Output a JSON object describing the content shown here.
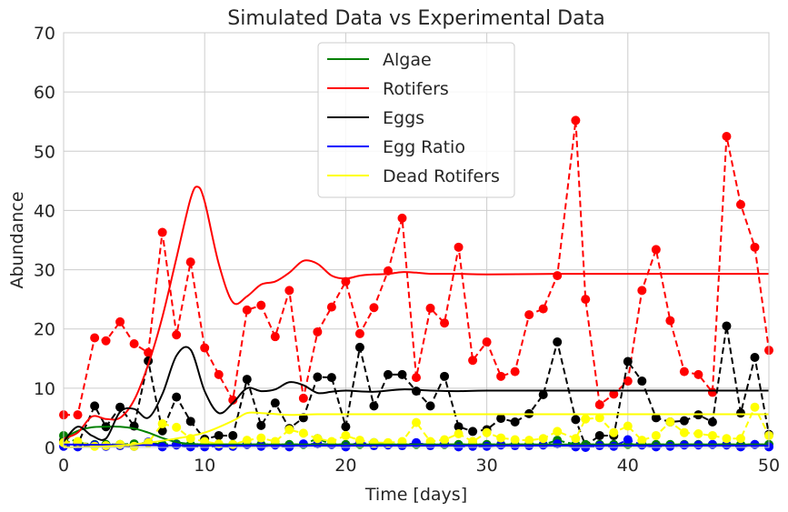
{
  "chart_data": {
    "type": "line",
    "title": "Simulated Data vs Experimental Data",
    "xlabel": "Time [days]",
    "ylabel": "Abundance",
    "xlim": [
      0,
      50
    ],
    "ylim": [
      0,
      70
    ],
    "xticks": [
      "0",
      "10",
      "20",
      "30",
      "40",
      "50"
    ],
    "yticks": [
      "0",
      "10",
      "20",
      "30",
      "40",
      "50",
      "60",
      "70"
    ],
    "grid": true,
    "legend_position": "top-center",
    "legend": [
      {
        "label": "Algae",
        "color": "#008000"
      },
      {
        "label": "Rotifers",
        "color": "#ff0000"
      },
      {
        "label": "Eggs",
        "color": "#000000"
      },
      {
        "label": "Egg Ratio",
        "color": "#0000ff"
      },
      {
        "label": "Dead Rotifers",
        "color": "#ffff00"
      }
    ],
    "simulated": [
      {
        "name": "Algae",
        "color": "#008000",
        "x": [
          0,
          1,
          2,
          3,
          4,
          5,
          6,
          7,
          8,
          9,
          10,
          12,
          14,
          16,
          18,
          20,
          25,
          30,
          35,
          40,
          45,
          50
        ],
        "y": [
          1.5,
          2.8,
          3.4,
          3.5,
          3.5,
          3.2,
          2.5,
          1.6,
          0.9,
          0.6,
          0.5,
          0.5,
          0.5,
          0.5,
          0.5,
          0.5,
          0.5,
          0.5,
          0.5,
          0.5,
          0.5,
          0.5
        ]
      },
      {
        "name": "Rotifers",
        "color": "#ff0000",
        "x": [
          0,
          1,
          2,
          3,
          4,
          5,
          6,
          7,
          8,
          9,
          9.5,
          10,
          11,
          12,
          13,
          14,
          15,
          16,
          17,
          18,
          19,
          20,
          21,
          22,
          23,
          24,
          25,
          26,
          28,
          30,
          35,
          40,
          45,
          50
        ],
        "y": [
          1.5,
          2.5,
          5.2,
          4.8,
          5.0,
          8.0,
          14.0,
          22.0,
          32.0,
          42.0,
          44.0,
          41.5,
          31.0,
          24.5,
          25.5,
          27.5,
          28.0,
          29.5,
          31.5,
          31.0,
          29.0,
          28.5,
          29.0,
          29.2,
          29.3,
          29.6,
          29.5,
          29.3,
          29.3,
          29.2,
          29.3,
          29.3,
          29.3,
          29.3
        ]
      },
      {
        "name": "Eggs",
        "color": "#000000",
        "x": [
          0,
          1,
          2,
          3,
          4,
          5,
          6,
          7,
          8,
          9,
          10,
          11,
          12,
          13,
          14,
          15,
          16,
          17,
          18,
          19,
          20,
          22,
          24,
          26,
          28,
          30,
          35,
          40,
          45,
          50
        ],
        "y": [
          1.0,
          3.5,
          2.0,
          1.5,
          6.0,
          6.5,
          5.0,
          9.0,
          15.5,
          16.5,
          9.5,
          5.8,
          7.5,
          10.0,
          9.5,
          9.8,
          11.0,
          10.5,
          9.2,
          9.4,
          9.6,
          9.4,
          9.8,
          9.6,
          9.5,
          9.6,
          9.6,
          9.6,
          9.6,
          9.6
        ]
      },
      {
        "name": "Egg Ratio",
        "color": "#0000ff",
        "x": [
          0,
          5,
          10,
          15,
          20,
          25,
          30,
          35,
          40,
          45,
          50
        ],
        "y": [
          0.5,
          0.4,
          0.3,
          0.3,
          0.3,
          0.3,
          0.3,
          0.3,
          0.3,
          0.3,
          0.3
        ]
      },
      {
        "name": "Dead Rotifers",
        "color": "#ffff00",
        "x": [
          0,
          2,
          4,
          6,
          8,
          10,
          12,
          13,
          14,
          16,
          18,
          20,
          25,
          30,
          35,
          40,
          45,
          50
        ],
        "y": [
          0,
          0.1,
          0.3,
          0.8,
          1.5,
          2.5,
          4.5,
          5.8,
          5.8,
          5.5,
          5.6,
          5.6,
          5.6,
          5.6,
          5.6,
          5.6,
          5.6,
          5.6
        ]
      }
    ],
    "experimental": [
      {
        "name": "Rotifers",
        "color": "#ff0000",
        "x": [
          0,
          1,
          2.2,
          3,
          4,
          5,
          6,
          7,
          8,
          9,
          10,
          11,
          12,
          13,
          14,
          15,
          16,
          17,
          18,
          19,
          20,
          21,
          22,
          23,
          24,
          25,
          26,
          27,
          28,
          29,
          30,
          31,
          32,
          33,
          34,
          35,
          36.3,
          37,
          38,
          39,
          40,
          41,
          42,
          43,
          44,
          45,
          46,
          47,
          48,
          49,
          50
        ],
        "y": [
          5.5,
          5.5,
          18.5,
          18.0,
          21.2,
          17.5,
          16.0,
          36.3,
          19.0,
          31.3,
          16.8,
          12.3,
          8.0,
          23.2,
          24.0,
          18.7,
          26.5,
          8.3,
          19.5,
          23.7,
          28.0,
          19.2,
          23.6,
          29.8,
          38.7,
          11.8,
          23.5,
          21.0,
          33.8,
          14.7,
          17.8,
          12.0,
          12.8,
          22.4,
          23.4,
          29.0,
          55.2,
          25.0,
          7.2,
          9.0,
          11.2,
          26.5,
          33.4,
          21.4,
          12.8,
          12.3,
          9.3,
          52.5,
          41.0,
          33.8,
          16.4
        ]
      },
      {
        "name": "Eggs",
        "color": "#000000",
        "x": [
          0,
          1,
          2.2,
          3,
          4,
          5,
          6,
          7,
          8,
          9,
          10,
          11,
          12,
          13,
          14,
          15,
          16,
          17,
          18,
          19,
          20,
          21,
          22,
          23,
          24,
          25,
          26,
          27,
          28,
          29,
          30,
          31,
          32,
          33,
          34,
          35,
          36.3,
          37,
          38,
          39,
          40,
          41,
          42,
          43,
          44,
          45,
          46,
          47,
          48,
          49,
          50
        ],
        "y": [
          1.2,
          0.5,
          7.0,
          3.5,
          6.8,
          3.6,
          14.6,
          2.8,
          8.5,
          4.4,
          1.4,
          2.0,
          2.0,
          11.5,
          3.7,
          7.5,
          3.2,
          5.0,
          11.9,
          11.8,
          3.5,
          16.9,
          7.0,
          12.3,
          12.3,
          9.5,
          7.0,
          12.0,
          3.5,
          2.7,
          3.0,
          4.9,
          4.3,
          5.7,
          8.9,
          17.8,
          4.7,
          0.3,
          2.0,
          2.0,
          14.5,
          11.2,
          5.0,
          4.3,
          4.5,
          5.5,
          4.3,
          20.5,
          5.8,
          15.2,
          2.2
        ]
      },
      {
        "name": "Algae",
        "color": "#008000",
        "x": [
          0,
          1,
          2.2,
          3,
          4,
          5,
          6,
          7,
          8,
          9,
          10,
          11,
          12,
          13,
          14,
          15,
          16,
          17,
          18,
          19,
          20,
          21,
          22,
          23,
          24,
          25,
          26,
          27,
          28,
          29,
          30,
          31,
          32,
          33,
          34,
          35,
          36.3,
          37,
          38,
          39,
          40,
          41,
          42,
          43,
          44,
          45,
          46,
          47,
          48,
          49,
          50
        ],
        "y": [
          2.0,
          0.8,
          0.5,
          0.5,
          0.5,
          0.6,
          0.8,
          0.5,
          0.6,
          0.5,
          0.6,
          0.5,
          0.5,
          0.5,
          0.5,
          0.5,
          0.5,
          0.5,
          1.5,
          0.5,
          0.5,
          0.5,
          0.8,
          0.5,
          0.5,
          0.5,
          0.5,
          0.5,
          0.5,
          0.5,
          0.5,
          0.5,
          0.5,
          0.5,
          0.5,
          1.2,
          0.5,
          0.5,
          0.5,
          0.5,
          0.5,
          0.5,
          0.5,
          0.5,
          0.5,
          0.5,
          0.5,
          0.5,
          0.5,
          0.5,
          0.5
        ]
      },
      {
        "name": "Egg Ratio",
        "color": "#0000ff",
        "x": [
          0,
          1,
          2.2,
          3,
          4,
          5,
          6,
          7,
          8,
          9,
          10,
          11,
          12,
          13,
          14,
          15,
          16,
          17,
          18,
          19,
          20,
          21,
          22,
          23,
          24,
          25,
          26,
          27,
          28,
          29,
          30,
          31,
          32,
          33,
          34,
          35,
          36.3,
          37,
          38,
          39,
          40,
          41,
          42,
          43,
          44,
          45,
          46,
          47,
          48,
          49,
          50
        ],
        "y": [
          0.2,
          0.1,
          0.4,
          0.2,
          0.3,
          0.2,
          0.9,
          0.1,
          0.4,
          0.1,
          0.1,
          0.2,
          0.2,
          0.5,
          0.2,
          0.4,
          0.1,
          0.6,
          0.6,
          0.5,
          0.1,
          0.9,
          0.3,
          0.4,
          0.3,
          0.8,
          0.3,
          0.6,
          0.1,
          0.2,
          0.2,
          0.4,
          0.3,
          0.3,
          0.4,
          0.6,
          0.1,
          0.0,
          0.3,
          0.2,
          1.3,
          0.4,
          0.1,
          0.2,
          0.4,
          0.4,
          0.5,
          0.4,
          0.1,
          0.5,
          0.1
        ]
      },
      {
        "name": "Dead Rotifers",
        "color": "#ffff00",
        "x": [
          0,
          1,
          2.2,
          3,
          4,
          5,
          6,
          7,
          8,
          9,
          10,
          11,
          12,
          13,
          14,
          15,
          16,
          17,
          18,
          19,
          20,
          21,
          22,
          23,
          24,
          25,
          26,
          27,
          28,
          29,
          30,
          31,
          32,
          33,
          34,
          35,
          36.3,
          37,
          38,
          39,
          40,
          41,
          42,
          43,
          44,
          45,
          46,
          47,
          48,
          49,
          50
        ],
        "y": [
          0.8,
          1.0,
          0.2,
          0.3,
          0.5,
          0.2,
          0.8,
          4.0,
          3.4,
          1.5,
          1.0,
          0.6,
          0.5,
          1.2,
          1.6,
          1.0,
          3.0,
          2.4,
          1.5,
          1.0,
          2.0,
          1.2,
          0.8,
          0.8,
          1.0,
          4.2,
          1.0,
          1.3,
          2.3,
          1.0,
          2.5,
          1.6,
          1.3,
          1.2,
          1.5,
          2.7,
          1.5,
          4.8,
          5.0,
          2.5,
          3.6,
          1.2,
          2.0,
          4.3,
          2.5,
          2.3,
          2.0,
          1.5,
          1.5,
          6.8,
          2.0
        ]
      }
    ]
  }
}
